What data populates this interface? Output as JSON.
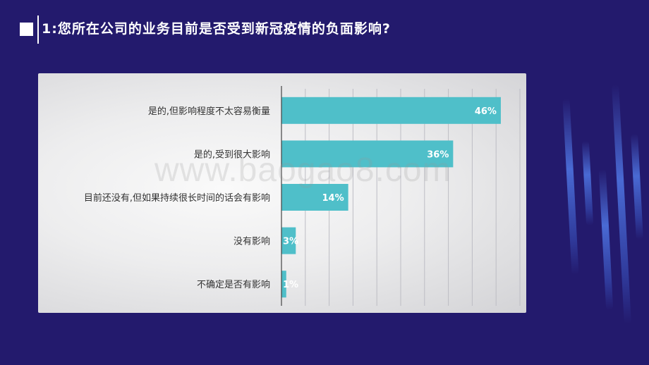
{
  "slide": {
    "title": "1:您所在公司的业务目前是否受到新冠疫情的负面影响?",
    "watermark": "www.baogao8.com"
  },
  "colors": {
    "background": "#231a6d",
    "bar": "#4fbfc9",
    "label_text": "#333333",
    "value_text": "#ffffff",
    "gridline": "#bdbdc4"
  },
  "chart_data": {
    "type": "bar",
    "orientation": "horizontal",
    "categories": [
      "是的,但影响程度不太容易衡量",
      "是的,受到很大影响",
      "目前还没有,但如果持续很长时间的话会有影响",
      "没有影响",
      "不确定是否有影响"
    ],
    "values": [
      46,
      36,
      14,
      3,
      1
    ],
    "value_labels": [
      "46%",
      "36%",
      "14%",
      "3%",
      "1%"
    ],
    "xlim": [
      0,
      50
    ],
    "grid": true,
    "legend": "none"
  }
}
